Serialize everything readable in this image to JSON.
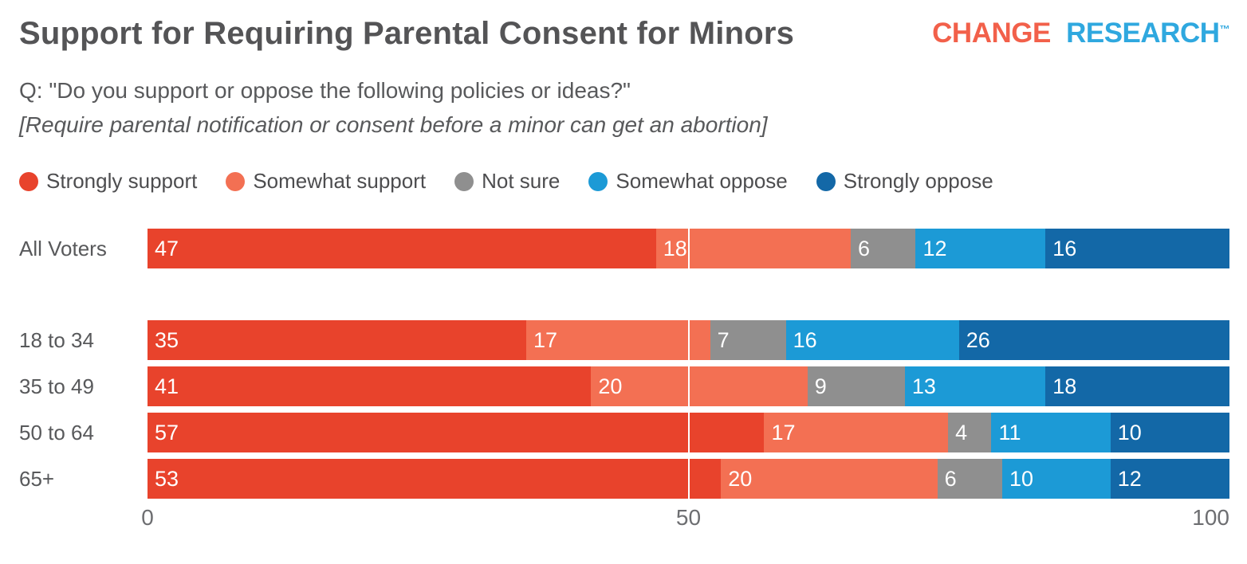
{
  "header": {
    "title": "Support for Requiring Parental Consent for Minors",
    "logo": {
      "change": "CHANGE",
      "research": "RESEARCH",
      "tm": "™"
    },
    "logo_colors": {
      "change": "#F2604A",
      "research": "#2FA8DF"
    }
  },
  "question": {
    "line1": "Q: \"Do you support or oppose the following policies or ideas?\"",
    "line2": "[Require parental notification or consent before a minor can get an abortion]"
  },
  "chart_data": {
    "type": "bar",
    "orientation": "horizontal",
    "stacked": true,
    "title": "Support for Requiring Parental Consent for Minors",
    "categories": [
      "All Voters",
      "18 to 34",
      "35 to 49",
      "50 to 64",
      "65+"
    ],
    "series": [
      {
        "name": "Strongly support",
        "color": "#E8432C",
        "values": [
          47,
          35,
          41,
          57,
          53
        ]
      },
      {
        "name": "Somewhat support",
        "color": "#F37053",
        "values": [
          18,
          17,
          20,
          17,
          20
        ]
      },
      {
        "name": "Not sure",
        "color": "#8F8F8F",
        "values": [
          6,
          7,
          9,
          4,
          6
        ]
      },
      {
        "name": "Somewhat oppose",
        "color": "#1C9AD6",
        "values": [
          12,
          16,
          13,
          11,
          10
        ]
      },
      {
        "name": "Strongly oppose",
        "color": "#1368A7",
        "values": [
          16,
          26,
          18,
          10,
          12
        ]
      }
    ],
    "value_labels": "inside-left",
    "xlim": [
      0,
      100
    ],
    "x_ticks": [
      "0",
      "50",
      "100"
    ],
    "gridline_at": 50,
    "legend_position": "top",
    "text_color": "#58595B"
  }
}
